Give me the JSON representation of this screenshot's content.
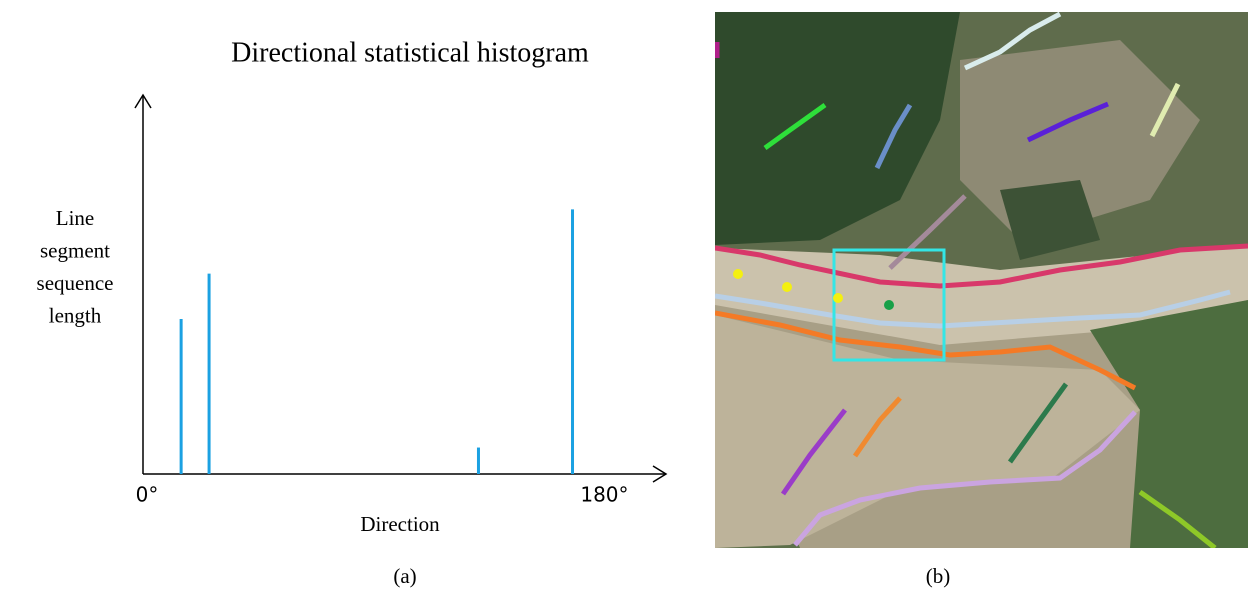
{
  "chart_data": {
    "type": "bar",
    "title": "Directional statistical histogram",
    "x_label": "Direction",
    "y_label": [
      "Line",
      "segment",
      "sequence",
      "length"
    ],
    "x": [
      15,
      26,
      132,
      169
    ],
    "values": [
      41,
      53,
      7,
      70
    ],
    "color": "#1ba1e2",
    "xlim": [
      0,
      205
    ],
    "ylim": [
      0,
      100
    ],
    "xticks": [
      {
        "value": 0,
        "label": "0°"
      },
      {
        "value": 180,
        "label": "180°"
      }
    ]
  },
  "panels": [
    "(a)",
    "(b)"
  ]
}
